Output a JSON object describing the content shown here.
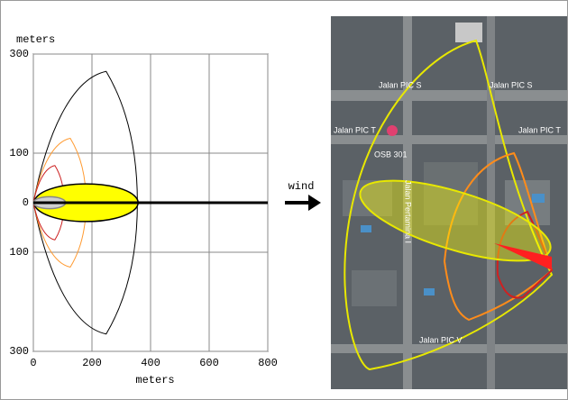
{
  "chart_data": {
    "type": "zones",
    "y_label": "meters",
    "x_label": "meters",
    "xlim": [
      0,
      800
    ],
    "xticks": [
      0,
      200,
      400,
      600,
      800
    ],
    "ylim": [
      -300,
      300
    ],
    "yticks": [
      {
        "value": -300,
        "label": "300"
      },
      {
        "value": -100,
        "label": "100"
      },
      0,
      100,
      300
    ],
    "grid": true,
    "centerline_color": "#000000",
    "zones": [
      {
        "shape": "footprint",
        "color": "#000000",
        "fill": "none",
        "downwind": 355,
        "crosswind": 265
      },
      {
        "shape": "footprint",
        "color": "#ff9a30",
        "fill": "none",
        "downwind": 180,
        "crosswind": 130
      },
      {
        "shape": "footprint",
        "color": "#cc2020",
        "fill": "none",
        "downwind": 105,
        "crosswind": 75
      },
      {
        "shape": "ellipse",
        "color": "#000000",
        "fill": "#ffff00",
        "center": 180,
        "downwind": 355,
        "crosswind": 38
      },
      {
        "shape": "ellipse",
        "color": "#888888",
        "fill": "#d0d0d0",
        "center": 55,
        "downwind": 110,
        "crosswind": 12
      }
    ]
  },
  "wind_label": "wind",
  "map": {
    "labels": [
      "Jalan PIC S",
      "Jalan PIC S",
      "Jalan PIC T",
      "Jalan PIC T",
      "OSB 301",
      "Jalan Pertamina I",
      "Jalan PIC V"
    ]
  }
}
